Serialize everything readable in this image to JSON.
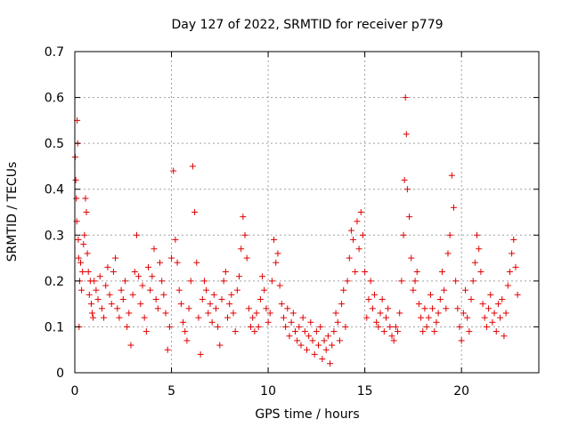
{
  "chart_data": {
    "type": "scatter",
    "title": "Day 127 of 2022, SRMTID for receiver p779",
    "xlabel": "GPS time / hours",
    "ylabel": "SRMTID / TECUs",
    "xlim": [
      0,
      24
    ],
    "ylim": [
      0,
      0.7
    ],
    "xticks": [
      0,
      5,
      10,
      15,
      20
    ],
    "xtick_labels": [
      "0",
      "5",
      "10",
      "15",
      "20"
    ],
    "yticks": [
      0,
      0.1,
      0.2,
      0.3,
      0.4,
      0.5,
      0.6,
      0.7
    ],
    "ytick_labels": [
      "0",
      "0.1",
      "0.2",
      "0.3",
      "0.4",
      "0.5",
      "0.6",
      "0.7"
    ],
    "grid": true,
    "marker": "+",
    "color": "#e00000",
    "series": [
      {
        "name": "SRMTID",
        "x": [
          0.02,
          0.05,
          0.08,
          0.1,
          0.12,
          0.15,
          0.18,
          0.2,
          0.22,
          0.25,
          0.3,
          0.35,
          0.4,
          0.45,
          0.5,
          0.55,
          0.6,
          0.65,
          0.7,
          0.75,
          0.8,
          0.85,
          0.9,
          0.95,
          1.0,
          1.1,
          1.2,
          1.3,
          1.4,
          1.5,
          1.6,
          1.7,
          1.8,
          1.9,
          2.0,
          2.1,
          2.2,
          2.3,
          2.4,
          2.5,
          2.6,
          2.7,
          2.8,
          2.9,
          3.0,
          3.1,
          3.2,
          3.3,
          3.4,
          3.5,
          3.6,
          3.7,
          3.8,
          3.9,
          4.0,
          4.1,
          4.2,
          4.3,
          4.4,
          4.5,
          4.6,
          4.7,
          4.8,
          4.9,
          5.0,
          5.1,
          5.2,
          5.3,
          5.4,
          5.5,
          5.6,
          5.7,
          5.8,
          5.9,
          6.0,
          6.1,
          6.2,
          6.3,
          6.4,
          6.5,
          6.6,
          6.7,
          6.8,
          6.9,
          7.0,
          7.1,
          7.2,
          7.3,
          7.4,
          7.5,
          7.6,
          7.7,
          7.8,
          7.9,
          8.0,
          8.1,
          8.2,
          8.3,
          8.4,
          8.5,
          8.6,
          8.7,
          8.8,
          8.9,
          9.0,
          9.1,
          9.2,
          9.3,
          9.4,
          9.5,
          9.6,
          9.7,
          9.8,
          9.9,
          10.0,
          10.1,
          10.2,
          10.3,
          10.4,
          10.5,
          10.6,
          10.7,
          10.8,
          10.9,
          11.0,
          11.1,
          11.2,
          11.3,
          11.4,
          11.5,
          11.6,
          11.7,
          11.8,
          11.9,
          12.0,
          12.1,
          12.2,
          12.3,
          12.4,
          12.5,
          12.6,
          12.7,
          12.8,
          12.9,
          13.0,
          13.1,
          13.2,
          13.3,
          13.4,
          13.5,
          13.6,
          13.7,
          13.8,
          13.9,
          14.0,
          14.1,
          14.2,
          14.3,
          14.4,
          14.5,
          14.6,
          14.7,
          14.8,
          14.9,
          15.0,
          15.1,
          15.2,
          15.3,
          15.4,
          15.5,
          15.6,
          15.7,
          15.8,
          15.9,
          16.0,
          16.1,
          16.2,
          16.3,
          16.4,
          16.5,
          16.6,
          16.7,
          16.8,
          16.9,
          17.0,
          17.05,
          17.1,
          17.15,
          17.2,
          17.3,
          17.4,
          17.5,
          17.6,
          17.7,
          17.8,
          17.9,
          18.0,
          18.1,
          18.2,
          18.3,
          18.4,
          18.5,
          18.6,
          18.7,
          18.8,
          18.9,
          19.0,
          19.1,
          19.2,
          19.3,
          19.4,
          19.5,
          19.6,
          19.7,
          19.8,
          19.9,
          20.0,
          20.1,
          20.2,
          20.3,
          20.4,
          20.5,
          20.6,
          20.7,
          20.8,
          20.9,
          21.0,
          21.1,
          21.2,
          21.3,
          21.4,
          21.5,
          21.6,
          21.7,
          21.8,
          21.9,
          22.0,
          22.1,
          22.2,
          22.3,
          22.4,
          22.5,
          22.6,
          22.7,
          22.8,
          22.9
        ],
        "y": [
          0.47,
          0.42,
          0.38,
          0.33,
          0.55,
          0.5,
          0.29,
          0.25,
          0.1,
          0.2,
          0.24,
          0.18,
          0.22,
          0.28,
          0.3,
          0.38,
          0.35,
          0.26,
          0.22,
          0.17,
          0.2,
          0.15,
          0.13,
          0.12,
          0.2,
          0.18,
          0.16,
          0.21,
          0.14,
          0.12,
          0.19,
          0.23,
          0.17,
          0.15,
          0.22,
          0.25,
          0.14,
          0.12,
          0.18,
          0.16,
          0.2,
          0.1,
          0.13,
          0.06,
          0.17,
          0.22,
          0.3,
          0.21,
          0.15,
          0.19,
          0.12,
          0.09,
          0.23,
          0.18,
          0.21,
          0.27,
          0.16,
          0.14,
          0.24,
          0.2,
          0.17,
          0.13,
          0.05,
          0.1,
          0.25,
          0.44,
          0.29,
          0.24,
          0.18,
          0.15,
          0.11,
          0.09,
          0.07,
          0.14,
          0.2,
          0.45,
          0.35,
          0.24,
          0.12,
          0.04,
          0.16,
          0.2,
          0.18,
          0.13,
          0.15,
          0.11,
          0.17,
          0.14,
          0.1,
          0.06,
          0.16,
          0.2,
          0.22,
          0.12,
          0.15,
          0.17,
          0.13,
          0.09,
          0.18,
          0.21,
          0.27,
          0.34,
          0.3,
          0.25,
          0.14,
          0.1,
          0.12,
          0.09,
          0.13,
          0.1,
          0.16,
          0.21,
          0.18,
          0.14,
          0.11,
          0.13,
          0.2,
          0.29,
          0.24,
          0.26,
          0.19,
          0.15,
          0.12,
          0.1,
          0.14,
          0.08,
          0.11,
          0.13,
          0.09,
          0.07,
          0.1,
          0.06,
          0.12,
          0.09,
          0.05,
          0.08,
          0.11,
          0.07,
          0.04,
          0.09,
          0.06,
          0.1,
          0.03,
          0.07,
          0.05,
          0.08,
          0.02,
          0.06,
          0.09,
          0.13,
          0.11,
          0.07,
          0.15,
          0.18,
          0.1,
          0.2,
          0.25,
          0.31,
          0.29,
          0.22,
          0.33,
          0.27,
          0.35,
          0.3,
          0.22,
          0.12,
          0.16,
          0.2,
          0.14,
          0.17,
          0.11,
          0.1,
          0.13,
          0.16,
          0.09,
          0.12,
          0.14,
          0.1,
          0.08,
          0.07,
          0.1,
          0.09,
          0.13,
          0.2,
          0.3,
          0.42,
          0.6,
          0.52,
          0.4,
          0.34,
          0.25,
          0.18,
          0.2,
          0.22,
          0.15,
          0.12,
          0.09,
          0.14,
          0.1,
          0.12,
          0.17,
          0.14,
          0.09,
          0.11,
          0.13,
          0.16,
          0.22,
          0.18,
          0.14,
          0.26,
          0.3,
          0.43,
          0.36,
          0.2,
          0.14,
          0.1,
          0.07,
          0.13,
          0.18,
          0.12,
          0.09,
          0.16,
          0.2,
          0.24,
          0.3,
          0.27,
          0.22,
          0.15,
          0.12,
          0.1,
          0.14,
          0.17,
          0.11,
          0.13,
          0.09,
          0.15,
          0.12,
          0.16,
          0.08,
          0.13,
          0.19,
          0.22,
          0.26,
          0.29,
          0.23,
          0.17
        ]
      }
    ]
  }
}
